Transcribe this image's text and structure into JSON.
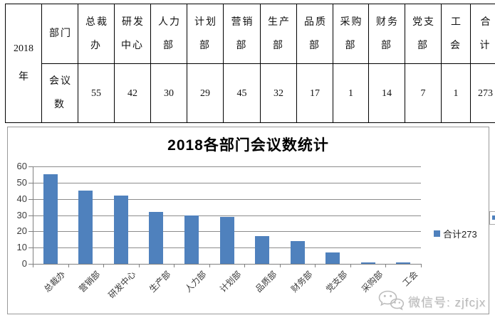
{
  "table": {
    "year": {
      "lines": [
        "2018",
        "年"
      ]
    },
    "dept_row_label": {
      "lines": [
        "部门"
      ]
    },
    "meetings_row_label": {
      "lines": [
        "会议",
        "数"
      ]
    },
    "columns": [
      {
        "header_lines": [
          "总裁",
          "办"
        ],
        "header": "总裁办",
        "value": "55"
      },
      {
        "header_lines": [
          "研发",
          "中心"
        ],
        "header": "研发中心",
        "value": "42"
      },
      {
        "header_lines": [
          "人力",
          "部"
        ],
        "header": "人力部",
        "value": "30"
      },
      {
        "header_lines": [
          "计划",
          "部"
        ],
        "header": "计划部",
        "value": "29"
      },
      {
        "header_lines": [
          "营销",
          "部"
        ],
        "header": "营销部",
        "value": "45"
      },
      {
        "header_lines": [
          "生产",
          "部"
        ],
        "header": "生产部",
        "value": "32"
      },
      {
        "header_lines": [
          "品质",
          "部"
        ],
        "header": "品质部",
        "value": "17"
      },
      {
        "header_lines": [
          "采购",
          "部"
        ],
        "header": "采购部",
        "value": "1"
      },
      {
        "header_lines": [
          "财务",
          "部"
        ],
        "header": "财务部",
        "value": "14"
      },
      {
        "header_lines": [
          "党支",
          "部"
        ],
        "header": "党支部",
        "value": "7"
      },
      {
        "header_lines": [
          "工",
          "会"
        ],
        "header": "工会",
        "value": "1"
      },
      {
        "header_lines": [
          "合",
          "计"
        ],
        "header": "合计",
        "value": "273"
      }
    ]
  },
  "chart_data": {
    "type": "bar",
    "title": "2018各部门会议数统计",
    "categories": [
      "总裁办",
      "营销部",
      "研发中心",
      "生产部",
      "人力部",
      "计划部",
      "品质部",
      "财务部",
      "党支部",
      "采购部",
      "工会"
    ],
    "values": [
      55,
      45,
      42,
      32,
      30,
      29,
      17,
      14,
      7,
      1,
      1
    ],
    "legend": "合计273",
    "legend_position": "right",
    "ylabel": "",
    "xlabel": "",
    "ylim": [
      0,
      60
    ],
    "ytick_step": 10,
    "grid": true,
    "bar_color": "#4F81BD",
    "grid_color": "#8c8c8c"
  },
  "watermark": {
    "label": "微信号: zjfcjx"
  }
}
